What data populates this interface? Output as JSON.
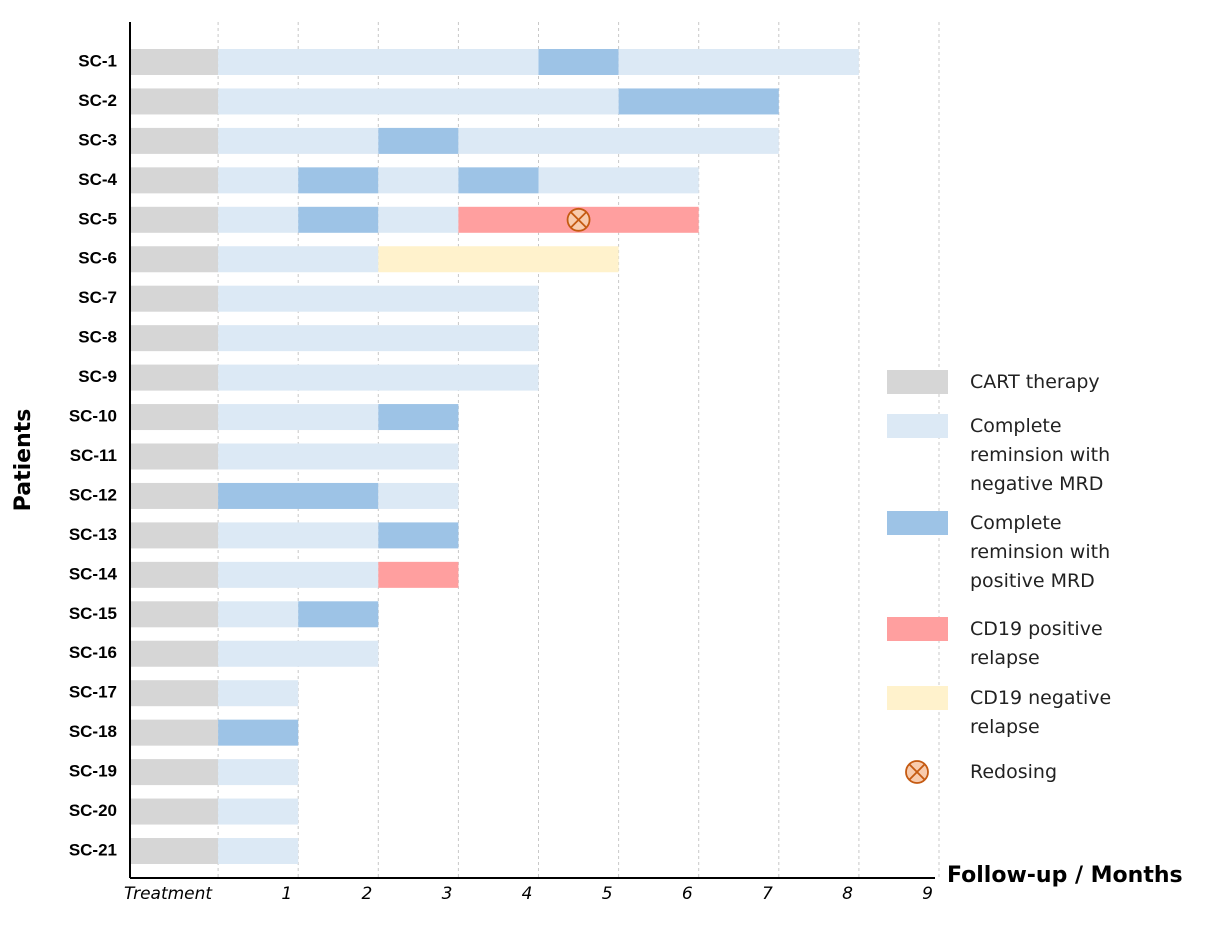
{
  "chart_data": {
    "type": "swimmer",
    "x_label": "Follow-up / Months",
    "y_label": "Patients",
    "xlim": [
      -1.1,
      9
    ],
    "xticks": [
      {
        "value": 0,
        "label": "Treatment"
      },
      1,
      2,
      3,
      4,
      5,
      6,
      7,
      8,
      9
    ],
    "grid": true,
    "series": [
      {
        "name": "CART therapy",
        "color": "#d6d6d6"
      },
      {
        "name": "Complete reminsion with negative MRD",
        "color": "#dce9f5"
      },
      {
        "name": "Complete reminsion with positive MRD",
        "color": "#9dc3e6"
      },
      {
        "name": "CD19 positive relapse",
        "color": "#ff9f9f"
      },
      {
        "name": "CD19 negative relapse",
        "color": "#fff2cc"
      }
    ],
    "marker": {
      "name": "Redosing",
      "color": "#f8cbad",
      "stroke": "#c55a11"
    },
    "patients": [
      {
        "name": "SC-1",
        "segments": [
          {
            "state": 0,
            "value": 1.1
          },
          {
            "state": 1,
            "value": 4
          },
          {
            "state": 2,
            "value": 1
          },
          {
            "state": 1,
            "value": 3
          }
        ]
      },
      {
        "name": "SC-2",
        "segments": [
          {
            "state": 0,
            "value": 1.1
          },
          {
            "state": 1,
            "value": 5
          },
          {
            "state": 2,
            "value": 2
          }
        ]
      },
      {
        "name": "SC-3",
        "segments": [
          {
            "state": 0,
            "value": 1.1
          },
          {
            "state": 1,
            "value": 2
          },
          {
            "state": 2,
            "value": 1
          },
          {
            "state": 1,
            "value": 4
          }
        ]
      },
      {
        "name": "SC-4",
        "segments": [
          {
            "state": 0,
            "value": 1.1
          },
          {
            "state": 1,
            "value": 1
          },
          {
            "state": 2,
            "value": 1
          },
          {
            "state": 1,
            "value": 1
          },
          {
            "state": 2,
            "value": 1
          },
          {
            "state": 1,
            "value": 2
          }
        ]
      },
      {
        "name": "SC-5",
        "segments": [
          {
            "state": 0,
            "value": 1.1
          },
          {
            "state": 1,
            "value": 1
          },
          {
            "state": 2,
            "value": 1
          },
          {
            "state": 1,
            "value": 1
          },
          {
            "state": 3,
            "value": 3
          }
        ],
        "redosing": 4.5
      },
      {
        "name": "SC-6",
        "segments": [
          {
            "state": 0,
            "value": 1.1
          },
          {
            "state": 1,
            "value": 2
          },
          {
            "state": 4,
            "value": 3
          }
        ]
      },
      {
        "name": "SC-7",
        "segments": [
          {
            "state": 0,
            "value": 1.1
          },
          {
            "state": 1,
            "value": 4
          }
        ]
      },
      {
        "name": "SC-8",
        "segments": [
          {
            "state": 0,
            "value": 1.1
          },
          {
            "state": 1,
            "value": 4
          }
        ]
      },
      {
        "name": "SC-9",
        "segments": [
          {
            "state": 0,
            "value": 1.1
          },
          {
            "state": 1,
            "value": 4
          }
        ]
      },
      {
        "name": "SC-10",
        "segments": [
          {
            "state": 0,
            "value": 1.1
          },
          {
            "state": 1,
            "value": 2
          },
          {
            "state": 2,
            "value": 1
          }
        ]
      },
      {
        "name": "SC-11",
        "segments": [
          {
            "state": 0,
            "value": 1.1
          },
          {
            "state": 1,
            "value": 3
          }
        ]
      },
      {
        "name": "SC-12",
        "segments": [
          {
            "state": 0,
            "value": 1.1
          },
          {
            "state": 2,
            "value": 2
          },
          {
            "state": 1,
            "value": 1
          }
        ]
      },
      {
        "name": "SC-13",
        "segments": [
          {
            "state": 0,
            "value": 1.1
          },
          {
            "state": 1,
            "value": 2
          },
          {
            "state": 2,
            "value": 1
          }
        ]
      },
      {
        "name": "SC-14",
        "segments": [
          {
            "state": 0,
            "value": 1.1
          },
          {
            "state": 1,
            "value": 2
          },
          {
            "state": 3,
            "value": 1
          }
        ]
      },
      {
        "name": "SC-15",
        "segments": [
          {
            "state": 0,
            "value": 1.1
          },
          {
            "state": 1,
            "value": 1
          },
          {
            "state": 2,
            "value": 1
          }
        ]
      },
      {
        "name": "SC-16",
        "segments": [
          {
            "state": 0,
            "value": 1.1
          },
          {
            "state": 1,
            "value": 2
          }
        ]
      },
      {
        "name": "SC-17",
        "segments": [
          {
            "state": 0,
            "value": 1.1
          },
          {
            "state": 1,
            "value": 1
          }
        ]
      },
      {
        "name": "SC-18",
        "segments": [
          {
            "state": 0,
            "value": 1.1
          },
          {
            "state": 2,
            "value": 1
          }
        ]
      },
      {
        "name": "SC-19",
        "segments": [
          {
            "state": 0,
            "value": 1.1
          },
          {
            "state": 1,
            "value": 1
          }
        ]
      },
      {
        "name": "SC-20",
        "segments": [
          {
            "state": 0,
            "value": 1.1
          },
          {
            "state": 1,
            "value": 1
          }
        ]
      },
      {
        "name": "SC-21",
        "segments": [
          {
            "state": 0,
            "value": 1.1
          },
          {
            "state": 1,
            "value": 1
          }
        ]
      }
    ]
  }
}
